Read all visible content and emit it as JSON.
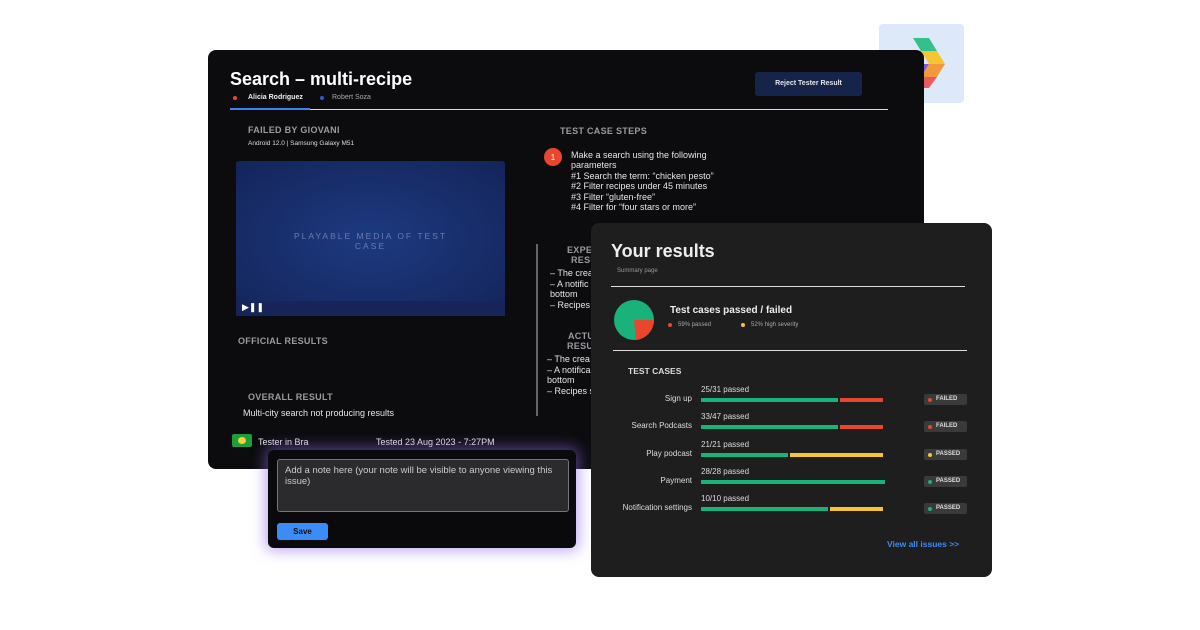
{
  "main": {
    "title": "Search – multi-recipe",
    "tabs": [
      "Alicia Rodriguez",
      "Robert Soza"
    ],
    "reject_button": "Reject Tester Result",
    "failed_by": "FAILED BY GIOVANI",
    "device": "Android 12.0 | Samsung Galaxy M51",
    "media": "PLAYABLE MEDIA OF TEST CASE",
    "official_results": "OFFICIAL RESULTS",
    "overall_result": "OVERALL RESULT",
    "overall_text": "Multi-city search not producing results",
    "tester": "Tester in Bra",
    "tested": "Tested 23 Aug 2023 - 7:27PM",
    "steps_title": "TEST CASE STEPS",
    "step_number": "1",
    "steps": [
      "Make a search using the following",
      "parameters",
      "#1 Search the term: “chicken pesto”",
      "#2 Filter recipes under 45 minutes",
      "#3 Filter “gluten-free”",
      "#4 Filter for “four stars or more”"
    ],
    "expected_title": [
      "EXPE",
      "RESU"
    ],
    "expected_lines": [
      "– The crea",
      "– A notific",
      "bottom",
      "– Recipes s"
    ],
    "actual_title": [
      "ACTU",
      "RESU"
    ],
    "actual_lines": [
      "– The crea",
      "– A notifica",
      "bottom",
      "– Recipes s"
    ]
  },
  "note": {
    "placeholder": "Add a note here (your note will be visible to anyone viewing this issue)",
    "save": "Save"
  },
  "results": {
    "title": "Your results",
    "subtitle": "Summary page",
    "summary_title": "Test cases passed / failed",
    "legend": [
      "59% passed",
      "52% high severity"
    ],
    "section": "TEST CASES",
    "rows": [
      {
        "name": "Sign up",
        "passed": "25/31 passed",
        "status": "FAILED"
      },
      {
        "name": "Search Podcasts",
        "passed": "33/47 passed",
        "status": "FAILED"
      },
      {
        "name": "Play podcast",
        "passed": "21/21 passed",
        "status": "PASSED"
      },
      {
        "name": "Payment",
        "passed": "28/28 passed",
        "status": "PASSED"
      },
      {
        "name": "Notification settings",
        "passed": "10/10 passed",
        "status": "PASSED"
      }
    ],
    "link": "View all issues >>"
  }
}
